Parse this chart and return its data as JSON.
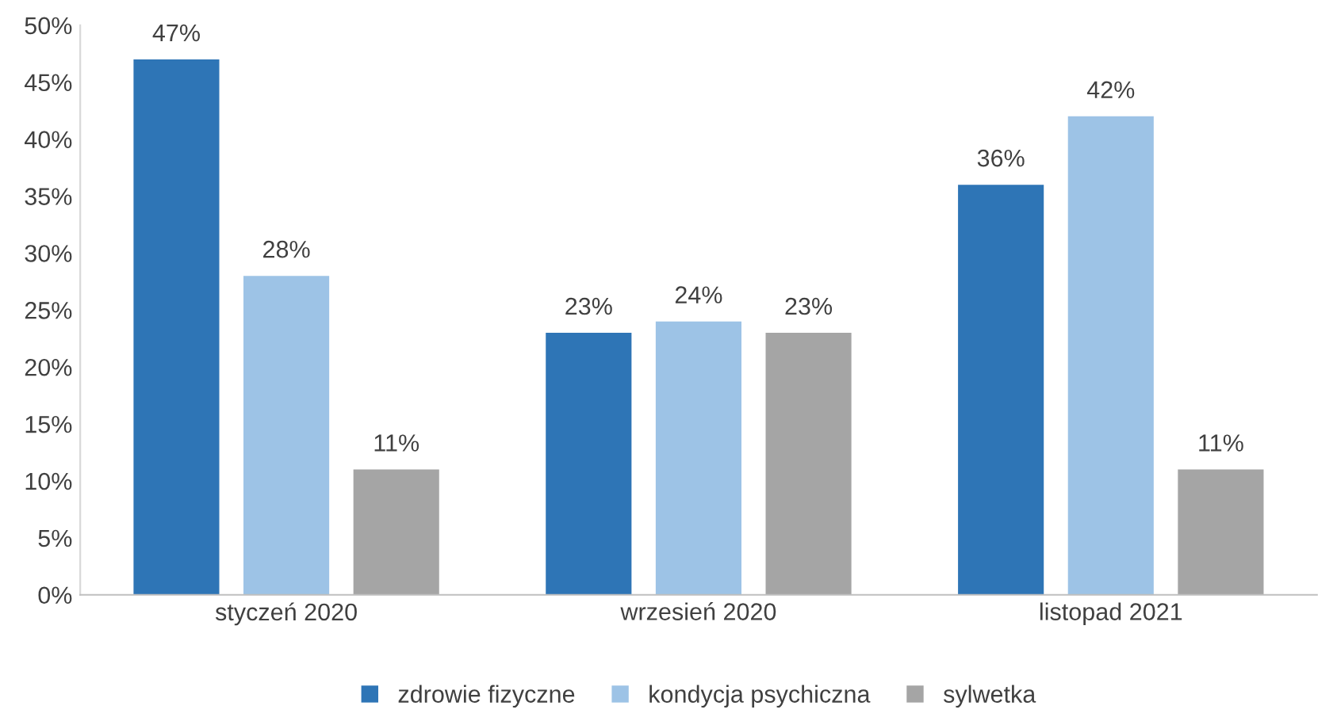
{
  "chart_data": {
    "type": "bar",
    "categories": [
      "styczeń 2020",
      "wrzesień 2020",
      "listopad 2021"
    ],
    "series": [
      {
        "name": "zdrowie fizyczne",
        "color": "#2e75b6",
        "values": [
          47,
          23,
          36
        ],
        "value_labels": [
          "47%",
          "23%",
          "36%"
        ]
      },
      {
        "name": "kondycja psychiczna",
        "color": "#9dc3e6",
        "values": [
          28,
          24,
          42
        ],
        "value_labels": [
          "28%",
          "24%",
          "42%"
        ]
      },
      {
        "name": "sylwetka",
        "color": "#a5a5a5",
        "values": [
          11,
          23,
          11
        ],
        "value_labels": [
          "11%",
          "23%",
          "11%"
        ]
      }
    ],
    "ylim": [
      0,
      50
    ],
    "yticks": [
      {
        "value": 0,
        "label": "0%"
      },
      {
        "value": 5,
        "label": "5%"
      },
      {
        "value": 10,
        "label": "10%"
      },
      {
        "value": 15,
        "label": "15%"
      },
      {
        "value": 20,
        "label": "20%"
      },
      {
        "value": 25,
        "label": "25%"
      },
      {
        "value": 30,
        "label": "30%"
      },
      {
        "value": 35,
        "label": "35%"
      },
      {
        "value": 40,
        "label": "40%"
      },
      {
        "value": 45,
        "label": "45%"
      },
      {
        "value": 50,
        "label": "50%"
      }
    ],
    "grid": false,
    "legend": "bottom"
  }
}
